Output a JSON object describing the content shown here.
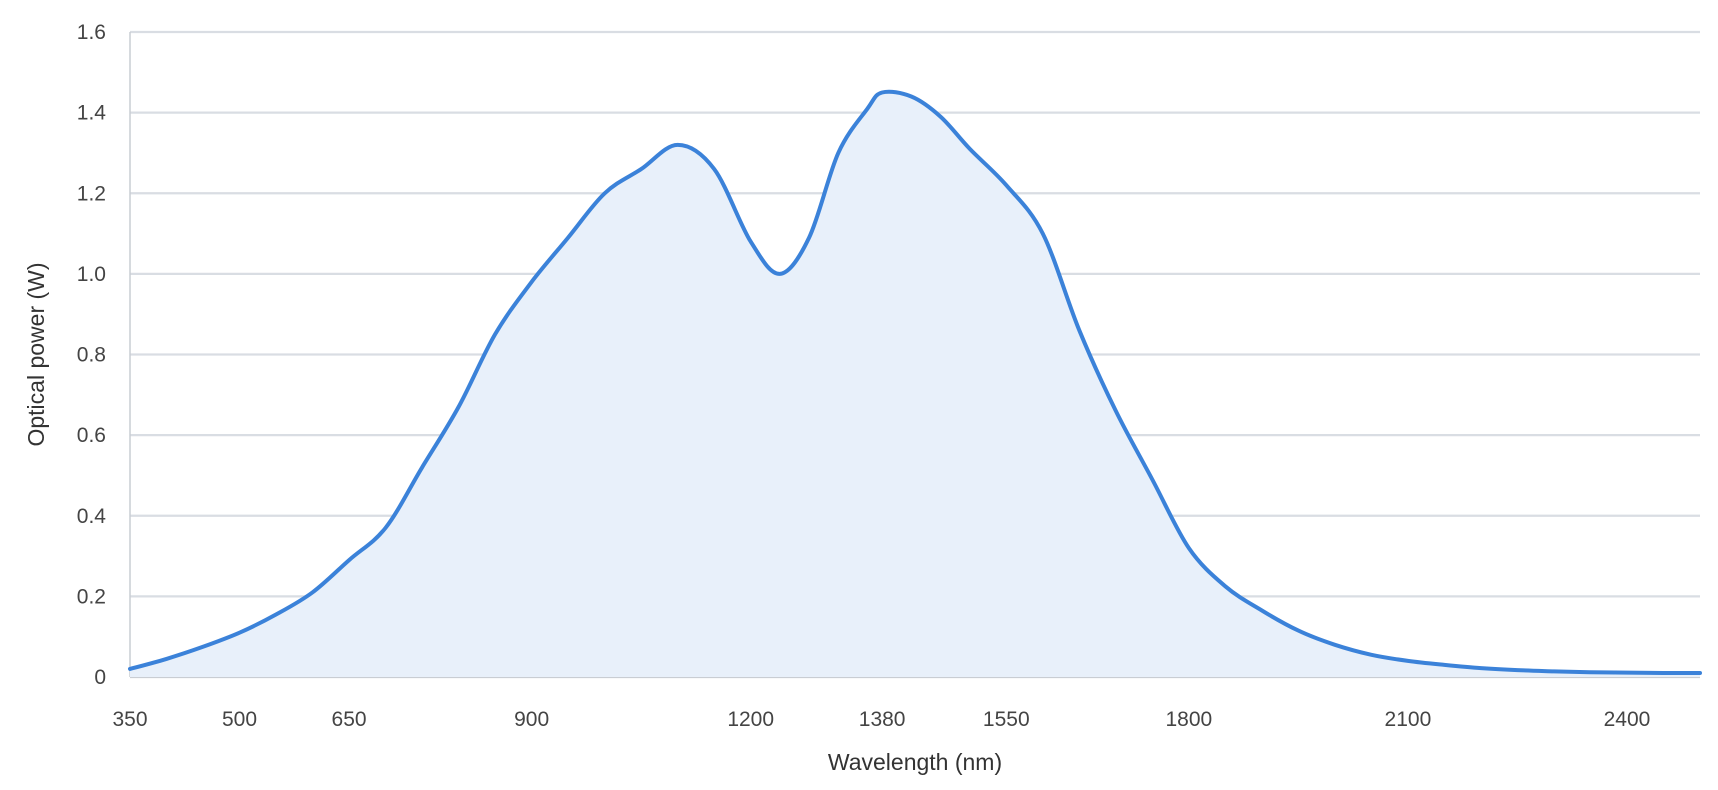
{
  "chart_data": {
    "type": "area",
    "title": "",
    "xlabel": "Wavelength (nm)",
    "ylabel": "Optical power (W)",
    "xlim": [
      350,
      2500
    ],
    "ylim": [
      0,
      1.6
    ],
    "x_ticks": [
      "350",
      "500",
      "650",
      "900",
      "1200",
      "1380",
      "1550",
      "1800",
      "2100",
      "2400"
    ],
    "y_ticks": [
      "0",
      "0.2",
      "0.4",
      "0.6",
      "0.8",
      "1.0",
      "1.2",
      "1.4",
      "1.6"
    ],
    "grid": true,
    "legend": "none",
    "colors": {
      "line": "#3b82d9",
      "fill": "#e8f0fa",
      "grid": "#d9dde3",
      "axis": "#c9cdd3"
    },
    "series": [
      {
        "x": [
          350,
          400,
          450,
          500,
          550,
          600,
          650,
          700,
          750,
          800,
          850,
          900,
          950,
          1000,
          1050,
          1100,
          1150,
          1200,
          1240,
          1280,
          1320,
          1360,
          1380,
          1420,
          1460,
          1500,
          1550,
          1600,
          1650,
          1700,
          1750,
          1800,
          1850,
          1900,
          1950,
          2000,
          2050,
          2100,
          2150,
          2200,
          2250,
          2300,
          2350,
          2400,
          2450,
          2500
        ],
        "y": [
          0.02,
          0.045,
          0.075,
          0.11,
          0.155,
          0.21,
          0.29,
          0.37,
          0.52,
          0.67,
          0.85,
          0.98,
          1.09,
          1.2,
          1.26,
          1.32,
          1.26,
          1.08,
          1.0,
          1.09,
          1.3,
          1.41,
          1.45,
          1.44,
          1.39,
          1.31,
          1.22,
          1.1,
          0.86,
          0.66,
          0.49,
          0.32,
          0.225,
          0.165,
          0.115,
          0.08,
          0.055,
          0.04,
          0.03,
          0.022,
          0.017,
          0.014,
          0.012,
          0.011,
          0.01,
          0.01
        ]
      }
    ]
  }
}
